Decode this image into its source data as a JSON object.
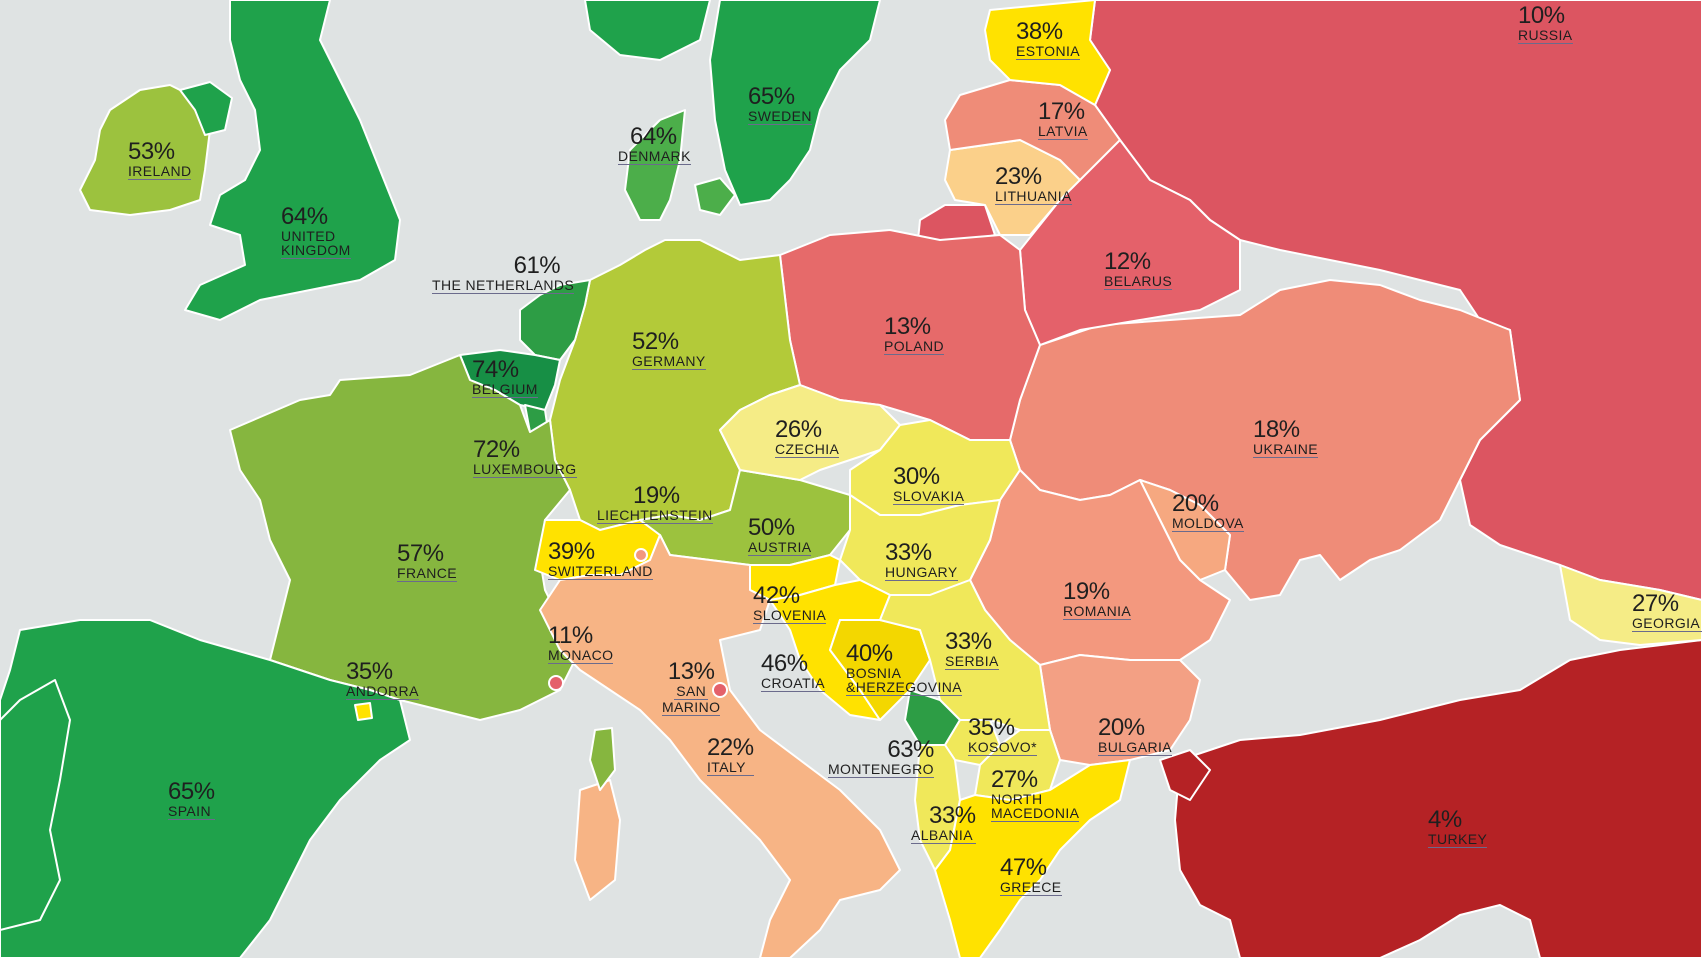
{
  "colors": {
    "sea": "#dfe3e3",
    "border": "#ffffff",
    "dark_green": "#178f45",
    "green": "#1fa24b",
    "mid_green": "#4cae4a",
    "olive_green": "#86b63f",
    "yellow_green": "#b3ca39",
    "light_green": "#9cc23e",
    "yellow": "#ffe200",
    "yellow_light": "#f0e85a",
    "pale_yellow": "#f5ec86",
    "peach": "#f7b485",
    "light_orange": "#f6a880",
    "salmon": "#ef8c78",
    "pink_red": "#e66a6a",
    "red": "#dc5561",
    "dark_red": "#b52225",
    "pale_orange": "#fbd08a"
  },
  "countries": [
    {
      "id": "russia",
      "pct": "10%",
      "name": "RUSSIA"
    },
    {
      "id": "estonia",
      "pct": "38%",
      "name": "ESTONIA"
    },
    {
      "id": "sweden",
      "pct": "65%",
      "name": "SWEDEN"
    },
    {
      "id": "latvia",
      "pct": "17%",
      "name": "LATVIA"
    },
    {
      "id": "ireland",
      "pct": "53%",
      "name": "IRELAND"
    },
    {
      "id": "denmark",
      "pct": "64%",
      "name": "DENMARK"
    },
    {
      "id": "lithuania",
      "pct": "23%",
      "name": "LITHUANIA"
    },
    {
      "id": "uk",
      "pct": "64%",
      "name_lines": [
        "UNITED",
        "KINGDOM"
      ]
    },
    {
      "id": "netherlands",
      "pct": "61%",
      "name": "THE NETHERLANDS"
    },
    {
      "id": "belarus",
      "pct": "12%",
      "name": "BELARUS"
    },
    {
      "id": "poland",
      "pct": "13%",
      "name": "POLAND"
    },
    {
      "id": "germany",
      "pct": "52%",
      "name": "GERMANY"
    },
    {
      "id": "belgium",
      "pct": "74%",
      "name": "BELGIUM"
    },
    {
      "id": "ukraine",
      "pct": "18%",
      "name": "UKRAINE"
    },
    {
      "id": "czechia",
      "pct": "26%",
      "name": "CZECHIA"
    },
    {
      "id": "luxembourg",
      "pct": "72%",
      "name": "LUXEMBOURG"
    },
    {
      "id": "slovakia",
      "pct": "30%",
      "name": "SLOVAKIA"
    },
    {
      "id": "liechtenstein",
      "pct": "19%",
      "name": "LIECHTENSTEIN"
    },
    {
      "id": "moldova",
      "pct": "20%",
      "name": "MOLDOVA"
    },
    {
      "id": "austria",
      "pct": "50%",
      "name": "AUSTRIA"
    },
    {
      "id": "france",
      "pct": "57%",
      "name": "FRANCE"
    },
    {
      "id": "switzerland",
      "pct": "39%",
      "name": "SWITZERLAND"
    },
    {
      "id": "hungary",
      "pct": "33%",
      "name": "HUNGARY"
    },
    {
      "id": "georgia",
      "pct": "27%",
      "name": "GEORGIA"
    },
    {
      "id": "slovenia",
      "pct": "42%",
      "name": "SLOVENIA"
    },
    {
      "id": "romania",
      "pct": "19%",
      "name": "ROMANIA"
    },
    {
      "id": "monaco",
      "pct": "11%",
      "name": "MONACO"
    },
    {
      "id": "serbia",
      "pct": "33%",
      "name": "SERBIA"
    },
    {
      "id": "andorra",
      "pct": "35%",
      "name": "ANDORRA"
    },
    {
      "id": "san_marino",
      "pct": "13%",
      "name_lines": [
        "SAN",
        "MARINO"
      ]
    },
    {
      "id": "croatia",
      "pct": "46%",
      "name": "CROATIA"
    },
    {
      "id": "bosnia",
      "pct": "40%",
      "name_lines": [
        "BOSNIA",
        "&HERZEGOVINA"
      ]
    },
    {
      "id": "kosovo",
      "pct": "35%",
      "name": "KOSOVO*"
    },
    {
      "id": "bulgaria",
      "pct": "20%",
      "name": "BULGARIA"
    },
    {
      "id": "italy",
      "pct": "22%",
      "name": "ITALY"
    },
    {
      "id": "montenegro",
      "pct": "63%",
      "name": "MONTENEGRO"
    },
    {
      "id": "spain",
      "pct": "65%",
      "name": "SPAIN"
    },
    {
      "id": "north_macedonia",
      "pct": "27%",
      "name_lines": [
        "NORTH",
        "MACEDONIA"
      ]
    },
    {
      "id": "turkey",
      "pct": "4%",
      "name": "TURKEY"
    },
    {
      "id": "albania",
      "pct": "33%",
      "name": "ALBANIA"
    },
    {
      "id": "greece",
      "pct": "47%",
      "name": "GREECE"
    }
  ]
}
